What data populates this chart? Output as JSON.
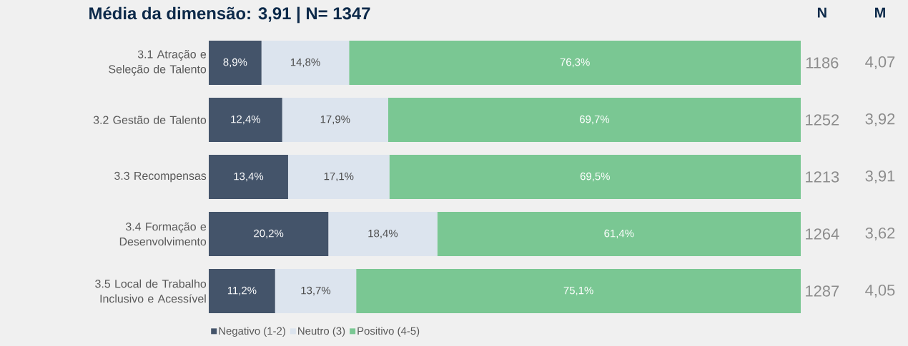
{
  "chart_data": {
    "type": "bar",
    "orientation": "horizontal",
    "stacked": true,
    "title": "Média da dimensão: 3,91 | N= 1347",
    "categories": [
      "3.1 Atração e Seleção de Talento",
      "3.2 Gestão de Talento",
      "3.3 Recompensas",
      "3.4 Formação e Desenvolvimento",
      "3.5 Local de Trabalho Inclusivo e Acessível"
    ],
    "series": [
      {
        "name": "Negativo (1-2)",
        "color": "#44546a",
        "values": [
          8.9,
          12.4,
          13.4,
          20.2,
          11.2
        ],
        "value_labels": [
          "8,9%",
          "12,4%",
          "13,4%",
          "20,2%",
          "11,2%"
        ]
      },
      {
        "name": "Neutro (3)",
        "color": "#dce4ee",
        "values": [
          14.8,
          17.9,
          17.1,
          18.4,
          13.7
        ],
        "value_labels": [
          "14,8%",
          "17,9%",
          "17,1%",
          "18,4%",
          "13,7%"
        ]
      },
      {
        "name": "Positivo (4-5)",
        "color": "#7ac793",
        "values": [
          76.3,
          69.7,
          69.5,
          61.4,
          75.1
        ],
        "value_labels": [
          "76,3%",
          "69,7%",
          "69,5%",
          "61,4%",
          "75,1%"
        ]
      }
    ],
    "xlim": [
      0,
      100
    ],
    "tick_labels": "y",
    "legend": "bottom",
    "annotations": [
      "N",
      "M",
      "1186",
      "4,07",
      "1252",
      "3,92",
      "1213",
      "3,91",
      "1264",
      "3,62",
      "1287",
      "4,05"
    ]
  }
}
